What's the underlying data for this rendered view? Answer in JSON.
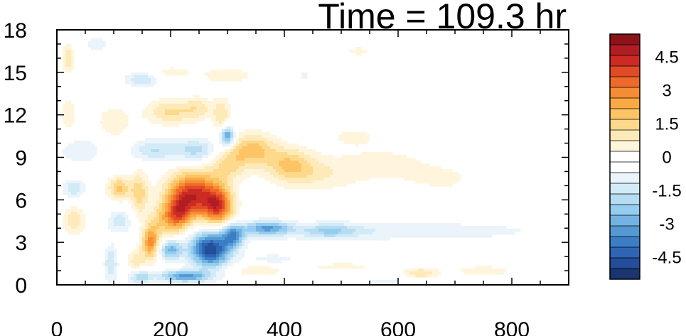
{
  "chart_data": {
    "type": "heatmap",
    "title": "Time = 109.3 hr",
    "xlabel": "",
    "ylabel": "",
    "xlim": [
      0,
      900
    ],
    "ylim": [
      0,
      18
    ],
    "x_ticks": [
      "0",
      "200",
      "400",
      "600",
      "800"
    ],
    "y_ticks": [
      "0",
      "3",
      "6",
      "9",
      "12",
      "15",
      "18"
    ],
    "grid": false,
    "legend": "colorbar-right",
    "colorbar": {
      "levels": [
        -5.5,
        -5,
        -4.5,
        -4,
        -3.5,
        -3,
        -2.5,
        -2,
        -1.5,
        -1,
        -0.5,
        0,
        0.5,
        1,
        1.5,
        2,
        2.5,
        3,
        3.5,
        4,
        4.5,
        5,
        5.5
      ],
      "labels": [
        "4.5",
        "3",
        "1.5",
        "0",
        "-1.5",
        "-3",
        "-4.5"
      ],
      "label_values": [
        4.5,
        3,
        1.5,
        0,
        -1.5,
        -3,
        -4.5
      ],
      "colors": [
        "#1a3570",
        "#244d9a",
        "#2f64b3",
        "#3c7ec6",
        "#5599d3",
        "#73b3e2",
        "#94cdf0",
        "#b5dcf2",
        "#d3eaf7",
        "#eaf4fa",
        "#ffffff",
        "#ffffff",
        "#fff5dc",
        "#feeab8",
        "#fdd98c",
        "#fcc465",
        "#faaa45",
        "#f68c34",
        "#ef6a2a",
        "#e14a26",
        "#cd2a24",
        "#b01d22",
        "#8c1318"
      ]
    },
    "features": [
      {
        "x": 240,
        "y": 6.3,
        "sx": 45,
        "sy": 1.6,
        "v": 4.8
      },
      {
        "x": 285,
        "y": 5.5,
        "sx": 25,
        "sy": 1.3,
        "v": 3.5
      },
      {
        "x": 215,
        "y": 5.0,
        "sx": 20,
        "sy": 1.2,
        "v": 2.5
      },
      {
        "x": 165,
        "y": 3.0,
        "sx": 15,
        "sy": 1.2,
        "v": 3.2
      },
      {
        "x": 190,
        "y": 4.5,
        "sx": 25,
        "sy": 1.2,
        "v": 1.8
      },
      {
        "x": 140,
        "y": 1.5,
        "sx": 15,
        "sy": 1.0,
        "v": 1.4
      },
      {
        "x": 110,
        "y": 6.8,
        "sx": 20,
        "sy": 0.8,
        "v": 2.2
      },
      {
        "x": 30,
        "y": 4.5,
        "sx": 20,
        "sy": 1.0,
        "v": 1.4
      },
      {
        "x": 145,
        "y": 6.5,
        "sx": 15,
        "sy": 1.5,
        "v": 1.8
      },
      {
        "x": 345,
        "y": 9.5,
        "sx": 40,
        "sy": 1.2,
        "v": 2.2
      },
      {
        "x": 410,
        "y": 8.5,
        "sx": 40,
        "sy": 1.2,
        "v": 1.8
      },
      {
        "x": 300,
        "y": 8.5,
        "sx": 30,
        "sy": 1.2,
        "v": 1.5
      },
      {
        "x": 460,
        "y": 7.8,
        "sx": 70,
        "sy": 1.2,
        "v": 0.9
      },
      {
        "x": 580,
        "y": 8.5,
        "sx": 90,
        "sy": 1.3,
        "v": 0.7
      },
      {
        "x": 680,
        "y": 7.5,
        "sx": 60,
        "sy": 0.9,
        "v": 0.6
      },
      {
        "x": 520,
        "y": 10.5,
        "sx": 50,
        "sy": 0.8,
        "v": 0.6
      },
      {
        "x": 200,
        "y": 12.2,
        "sx": 45,
        "sy": 0.9,
        "v": 1.6
      },
      {
        "x": 290,
        "y": 12.0,
        "sx": 15,
        "sy": 1.2,
        "v": 1.4
      },
      {
        "x": 250,
        "y": 12.5,
        "sx": 25,
        "sy": 0.8,
        "v": 1.0
      },
      {
        "x": 100,
        "y": 11.5,
        "sx": 30,
        "sy": 1.2,
        "v": 0.9
      },
      {
        "x": 20,
        "y": 12.0,
        "sx": 15,
        "sy": 1.5,
        "v": 0.8
      },
      {
        "x": 300,
        "y": 14.8,
        "sx": 50,
        "sy": 0.7,
        "v": 0.8
      },
      {
        "x": 200,
        "y": 15.0,
        "sx": 40,
        "sy": 0.5,
        "v": 0.7
      },
      {
        "x": 20,
        "y": 16.0,
        "sx": 10,
        "sy": 1.0,
        "v": 1.5
      },
      {
        "x": 530,
        "y": 16.5,
        "sx": 40,
        "sy": 0.5,
        "v": 0.6
      },
      {
        "x": 640,
        "y": 0.8,
        "sx": 30,
        "sy": 0.4,
        "v": 1.4
      },
      {
        "x": 750,
        "y": 1.0,
        "sx": 60,
        "sy": 0.4,
        "v": 0.8
      },
      {
        "x": 500,
        "y": 1.3,
        "sx": 100,
        "sy": 0.4,
        "v": 0.6
      },
      {
        "x": 350,
        "y": 1.0,
        "sx": 50,
        "sy": 0.5,
        "v": 0.8
      },
      {
        "x": 270,
        "y": 2.5,
        "sx": 35,
        "sy": 1.2,
        "v": -5.0
      },
      {
        "x": 310,
        "y": 3.5,
        "sx": 20,
        "sy": 0.8,
        "v": -3.0
      },
      {
        "x": 370,
        "y": 4.0,
        "sx": 40,
        "sy": 0.5,
        "v": -2.8
      },
      {
        "x": 200,
        "y": 2.5,
        "sx": 20,
        "sy": 0.7,
        "v": -2.8
      },
      {
        "x": 225,
        "y": 0.6,
        "sx": 45,
        "sy": 0.4,
        "v": -3.2
      },
      {
        "x": 145,
        "y": 0.6,
        "sx": 20,
        "sy": 0.6,
        "v": -2.2
      },
      {
        "x": 95,
        "y": 1.5,
        "sx": 12,
        "sy": 1.3,
        "v": -1.5
      },
      {
        "x": 300,
        "y": 10.5,
        "sx": 12,
        "sy": 0.7,
        "v": -3.5
      },
      {
        "x": 245,
        "y": 9.5,
        "sx": 40,
        "sy": 0.8,
        "v": -1.8
      },
      {
        "x": 170,
        "y": 9.5,
        "sx": 40,
        "sy": 0.8,
        "v": -1.5
      },
      {
        "x": 40,
        "y": 9.5,
        "sx": 40,
        "sy": 1.0,
        "v": -0.9
      },
      {
        "x": 30,
        "y": 6.8,
        "sx": 20,
        "sy": 0.6,
        "v": -1.5
      },
      {
        "x": 110,
        "y": 4.5,
        "sx": 20,
        "sy": 0.8,
        "v": -1.3
      },
      {
        "x": 150,
        "y": 14.5,
        "sx": 30,
        "sy": 0.5,
        "v": -1.5
      },
      {
        "x": 70,
        "y": 17.0,
        "sx": 30,
        "sy": 0.6,
        "v": -0.7
      },
      {
        "x": 435,
        "y": 14.8,
        "sx": 10,
        "sy": 0.5,
        "v": -0.6
      },
      {
        "x": 600,
        "y": 3.8,
        "sx": 280,
        "sy": 0.7,
        "v": -0.9
      },
      {
        "x": 480,
        "y": 3.8,
        "sx": 50,
        "sy": 0.5,
        "v": -1.5
      },
      {
        "x": 380,
        "y": 1.8,
        "sx": 50,
        "sy": 0.4,
        "v": -0.8
      },
      {
        "x": 580,
        "y": 0.3,
        "sx": 80,
        "sy": 0.3,
        "v": -0.6
      }
    ]
  }
}
